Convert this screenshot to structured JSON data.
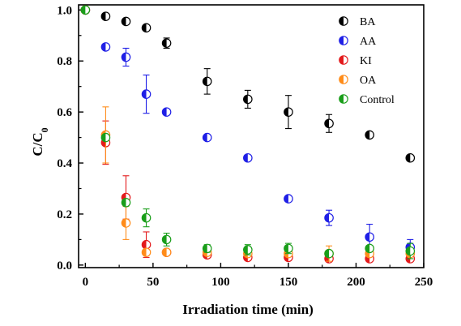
{
  "chart_data": {
    "type": "scatter",
    "title": "",
    "xlabel": "Irradiation time (min)",
    "ylabel_main": "C/C",
    "ylabel_sub": "0",
    "xlim": [
      -5,
      250
    ],
    "ylim": [
      -0.01,
      1.02
    ],
    "xticks": [
      0,
      50,
      100,
      150,
      200,
      250
    ],
    "yticks": [
      0.0,
      0.2,
      0.4,
      0.6,
      0.8,
      1.0
    ],
    "xtick_labels": [
      "0",
      "50",
      "100",
      "150",
      "200",
      "250"
    ],
    "ytick_labels": [
      "0.0",
      "0.2",
      "0.4",
      "0.6",
      "0.8",
      "1.0"
    ],
    "legend_position": "top-right",
    "marker": "half-filled-circle",
    "series": [
      {
        "name": "BA",
        "color": "#000000",
        "points": [
          {
            "x": 0,
            "y": 1.0,
            "err": 0.0
          },
          {
            "x": 15,
            "y": 0.975,
            "err": 0.0
          },
          {
            "x": 30,
            "y": 0.955,
            "err": 0.0
          },
          {
            "x": 45,
            "y": 0.93,
            "err": 0.0
          },
          {
            "x": 60,
            "y": 0.87,
            "err": 0.02
          },
          {
            "x": 90,
            "y": 0.72,
            "err": 0.05
          },
          {
            "x": 120,
            "y": 0.65,
            "err": 0.035
          },
          {
            "x": 150,
            "y": 0.6,
            "err": 0.065
          },
          {
            "x": 180,
            "y": 0.555,
            "err": 0.035
          },
          {
            "x": 210,
            "y": 0.51,
            "err": 0.0
          },
          {
            "x": 240,
            "y": 0.42,
            "err": 0.0
          }
        ]
      },
      {
        "name": "AA",
        "color": "#1f1fe6",
        "points": [
          {
            "x": 0,
            "y": 1.0,
            "err": 0.0
          },
          {
            "x": 15,
            "y": 0.855,
            "err": 0.0
          },
          {
            "x": 30,
            "y": 0.815,
            "err": 0.035
          },
          {
            "x": 45,
            "y": 0.67,
            "err": 0.075
          },
          {
            "x": 60,
            "y": 0.6,
            "err": 0.0
          },
          {
            "x": 90,
            "y": 0.5,
            "err": 0.0
          },
          {
            "x": 120,
            "y": 0.42,
            "err": 0.0
          },
          {
            "x": 150,
            "y": 0.26,
            "err": 0.0
          },
          {
            "x": 180,
            "y": 0.185,
            "err": 0.03
          },
          {
            "x": 210,
            "y": 0.11,
            "err": 0.05
          },
          {
            "x": 240,
            "y": 0.07,
            "err": 0.03
          }
        ]
      },
      {
        "name": "KI",
        "color": "#e31a1c",
        "points": [
          {
            "x": 0,
            "y": 1.0,
            "err": 0.0
          },
          {
            "x": 15,
            "y": 0.48,
            "err": 0.085
          },
          {
            "x": 30,
            "y": 0.265,
            "err": 0.085
          },
          {
            "x": 45,
            "y": 0.08,
            "err": 0.05
          },
          {
            "x": 60,
            "y": 0.05,
            "err": 0.0
          },
          {
            "x": 90,
            "y": 0.04,
            "err": 0.0
          },
          {
            "x": 120,
            "y": 0.03,
            "err": 0.0
          },
          {
            "x": 150,
            "y": 0.03,
            "err": 0.0
          },
          {
            "x": 180,
            "y": 0.025,
            "err": 0.0
          },
          {
            "x": 210,
            "y": 0.025,
            "err": 0.0
          },
          {
            "x": 240,
            "y": 0.025,
            "err": 0.0
          }
        ]
      },
      {
        "name": "OA",
        "color": "#ff8c1a",
        "points": [
          {
            "x": 0,
            "y": 1.0,
            "err": 0.0
          },
          {
            "x": 15,
            "y": 0.51,
            "err": 0.11
          },
          {
            "x": 30,
            "y": 0.165,
            "err": 0.065
          },
          {
            "x": 45,
            "y": 0.05,
            "err": 0.0
          },
          {
            "x": 60,
            "y": 0.05,
            "err": 0.0
          },
          {
            "x": 90,
            "y": 0.05,
            "err": 0.0
          },
          {
            "x": 120,
            "y": 0.045,
            "err": 0.0
          },
          {
            "x": 150,
            "y": 0.045,
            "err": 0.0
          },
          {
            "x": 180,
            "y": 0.045,
            "err": 0.03
          },
          {
            "x": 210,
            "y": 0.045,
            "err": 0.0
          },
          {
            "x": 240,
            "y": 0.045,
            "err": 0.0
          }
        ]
      },
      {
        "name": "Control",
        "color": "#1a9e1a",
        "points": [
          {
            "x": 0,
            "y": 1.0,
            "err": 0.0
          },
          {
            "x": 15,
            "y": 0.5,
            "err": 0.0
          },
          {
            "x": 30,
            "y": 0.245,
            "err": 0.0
          },
          {
            "x": 45,
            "y": 0.185,
            "err": 0.035
          },
          {
            "x": 60,
            "y": 0.1,
            "err": 0.025
          },
          {
            "x": 90,
            "y": 0.065,
            "err": 0.015
          },
          {
            "x": 120,
            "y": 0.06,
            "err": 0.02
          },
          {
            "x": 150,
            "y": 0.065,
            "err": 0.02
          },
          {
            "x": 180,
            "y": 0.045,
            "err": 0.0
          },
          {
            "x": 210,
            "y": 0.065,
            "err": 0.0
          },
          {
            "x": 240,
            "y": 0.055,
            "err": 0.03
          }
        ]
      }
    ]
  }
}
